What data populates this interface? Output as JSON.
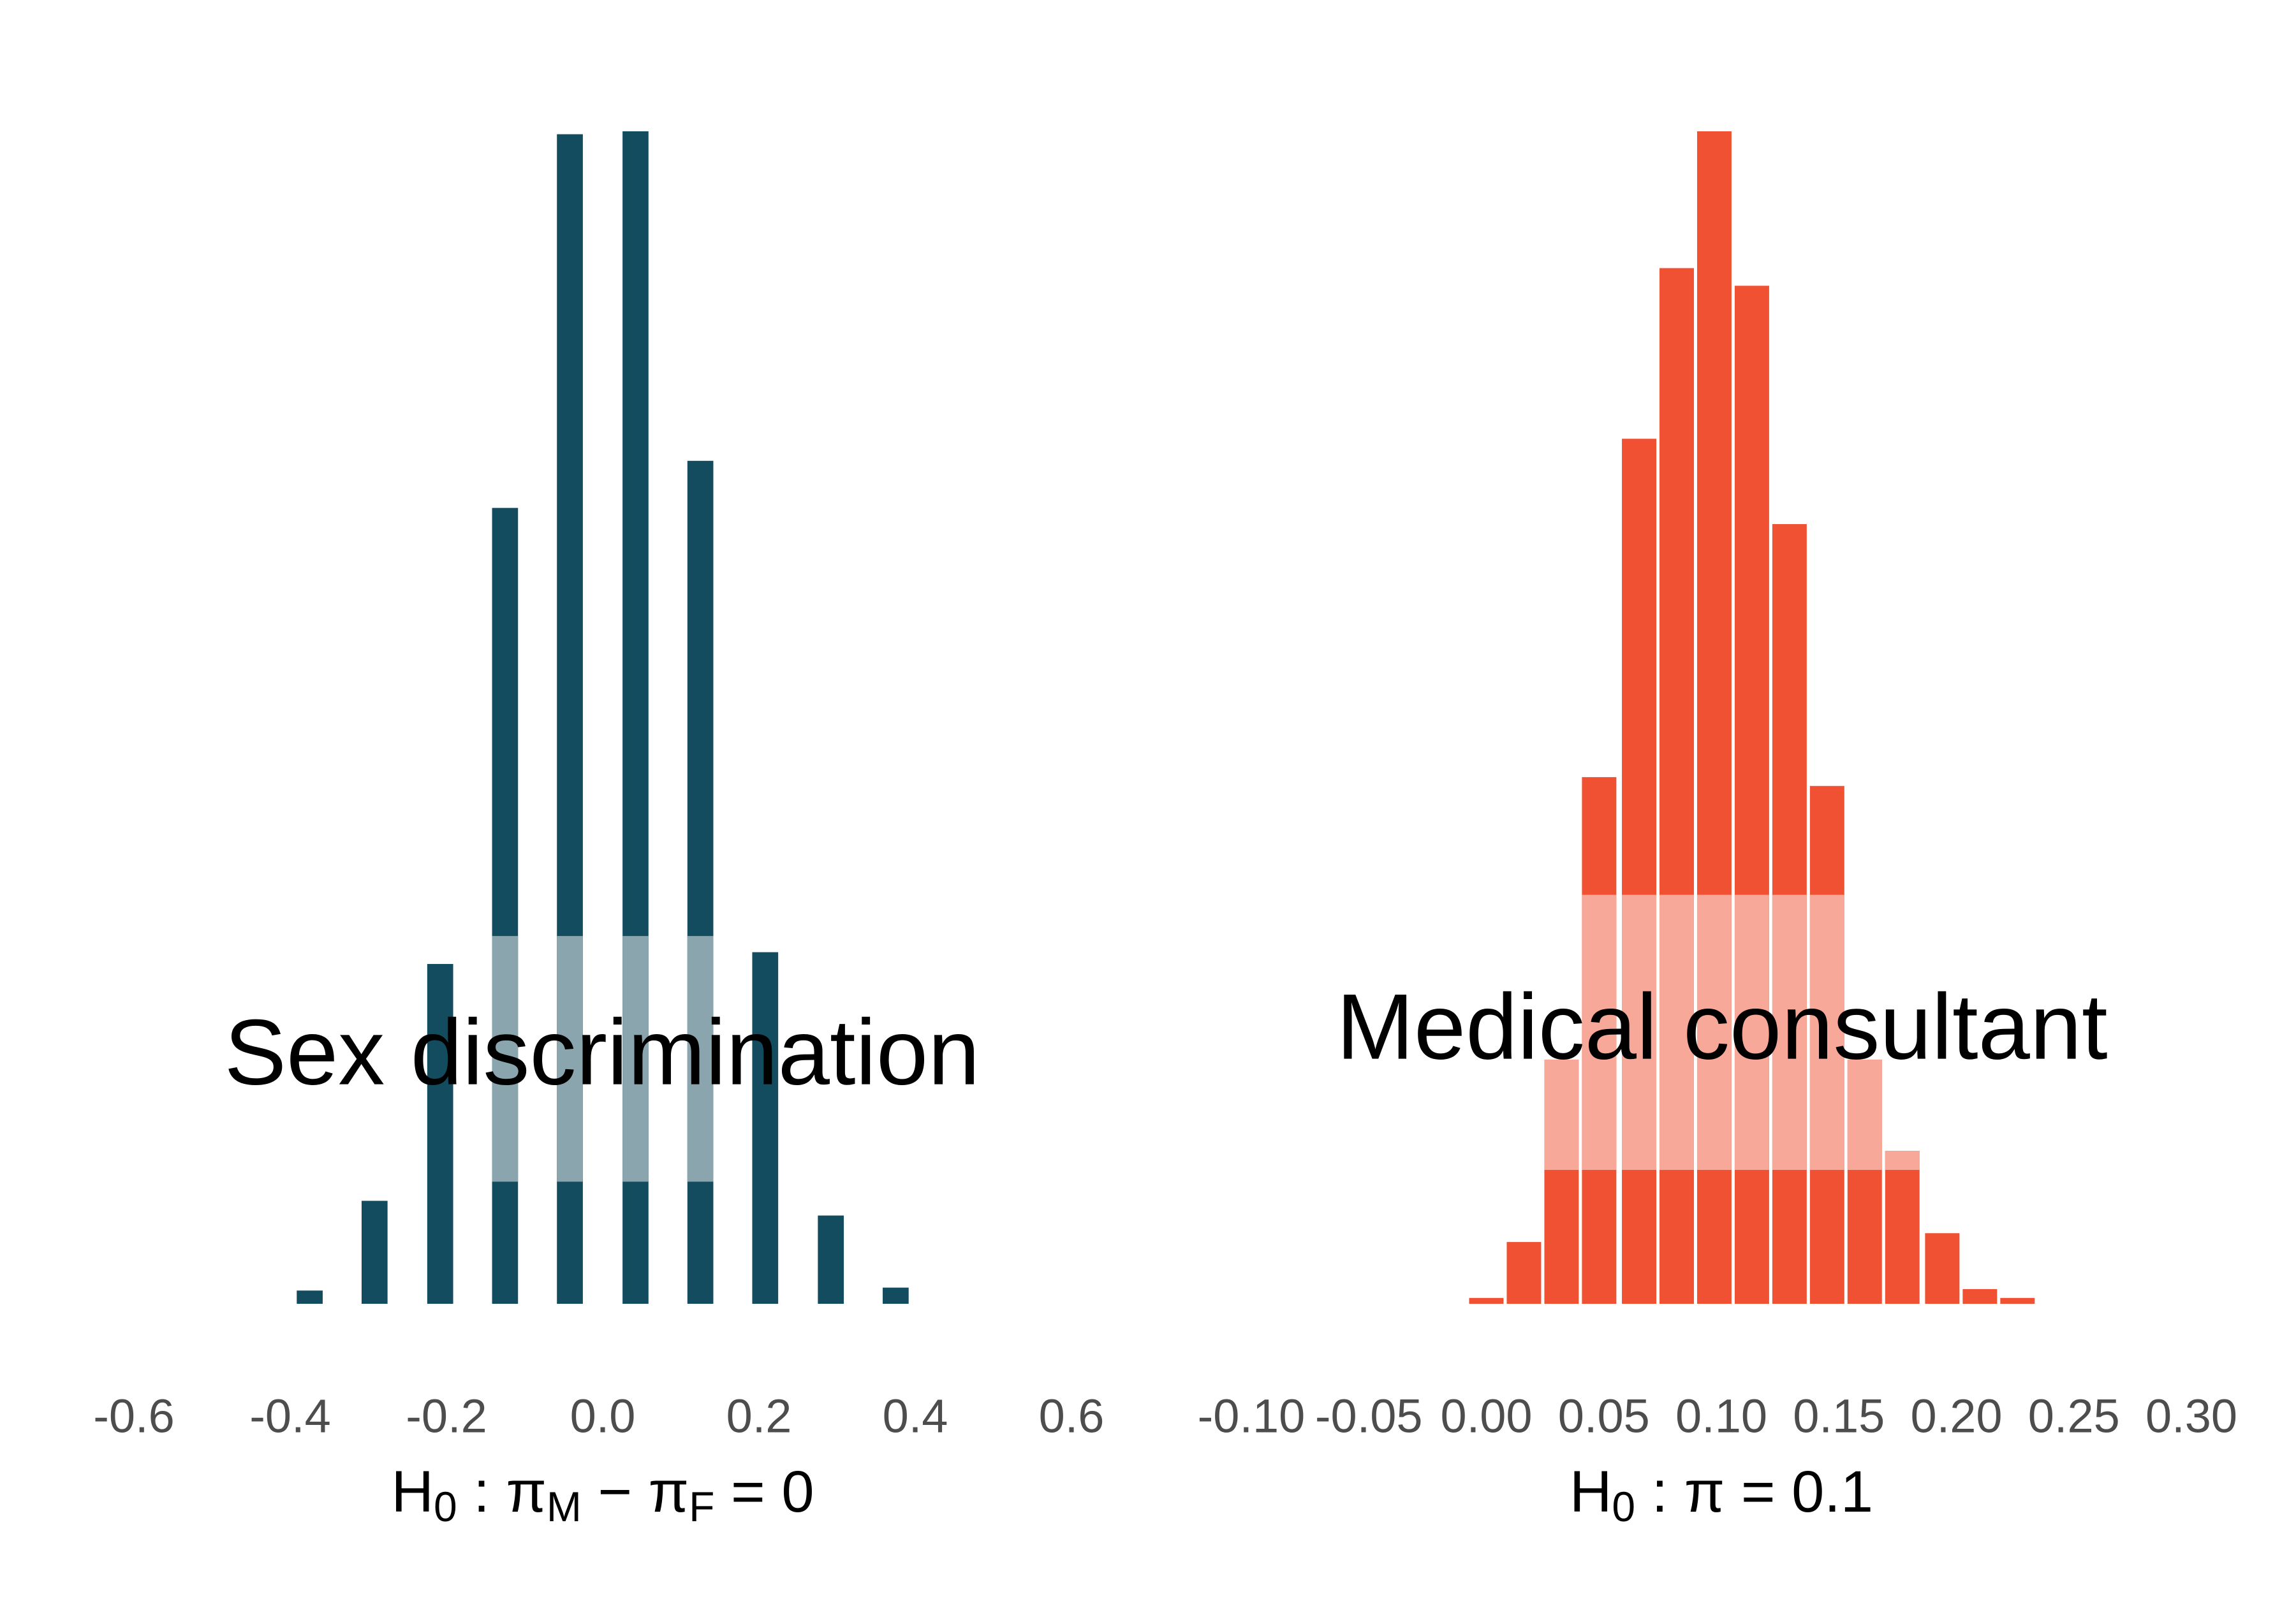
{
  "chart_data": [
    {
      "type": "bar",
      "title": "Sex discrimination",
      "xlabel": [
        {
          "text": "H"
        },
        {
          "text": "0",
          "sub": true
        },
        {
          "text": " :  π"
        },
        {
          "text": "M",
          "sub": true
        },
        {
          "text": " − π"
        },
        {
          "text": "F",
          "sub": true
        },
        {
          "text": " = 0"
        }
      ],
      "x": [
        -0.375,
        -0.292,
        -0.208,
        -0.125,
        -0.042,
        0.042,
        0.125,
        0.208,
        0.292,
        0.375
      ],
      "values": [
        9,
        70,
        231,
        541,
        795,
        797,
        573,
        239,
        60,
        11
      ],
      "highlight_low": [
        null,
        null,
        null,
        83,
        83,
        83,
        83,
        null,
        null,
        null
      ],
      "highlight_high": [
        null,
        null,
        null,
        250,
        250,
        250,
        250,
        null,
        null,
        null
      ],
      "color": "#134b5f",
      "highlight_color": "#8aa5ae",
      "xlim": [
        -0.6,
        0.6
      ],
      "xticks": [
        -0.6,
        -0.4,
        -0.2,
        {
          "value": 0,
          "label": "0.0"
        },
        0.2,
        0.4,
        0.6
      ],
      "ylim": [
        0,
        800
      ]
    },
    {
      "type": "bar",
      "title": "Medical consultant",
      "xlabel": [
        {
          "text": "H"
        },
        {
          "text": "0",
          "sub": true
        },
        {
          "text": " :  π = 0.1"
        }
      ],
      "x": [
        0,
        0.016,
        0.032,
        0.048,
        0.065,
        0.081,
        0.097,
        0.113,
        0.129,
        0.145,
        0.161,
        0.177,
        0.194,
        0.21,
        0.226
      ],
      "values": [
        4,
        42,
        166,
        358,
        588,
        704,
        797,
        692,
        530,
        352,
        166,
        104,
        48,
        10,
        4
      ],
      "highlight_low": [
        null,
        null,
        91,
        91,
        91,
        91,
        91,
        91,
        91,
        91,
        91,
        91,
        null,
        null,
        null
      ],
      "highlight_high": [
        null,
        null,
        166,
        278,
        278,
        278,
        278,
        278,
        278,
        278,
        166,
        104,
        null,
        null,
        null
      ],
      "color": "#f05133",
      "highlight_color": "#f7a898",
      "xlim": [
        -0.1,
        0.3
      ],
      "xticks": [
        {
          "value": -0.1,
          "label": "-0.10"
        },
        -0.05,
        {
          "value": 0,
          "label": "0.00"
        },
        0.05,
        {
          "value": 0.1,
          "label": "0.10"
        },
        0.15,
        {
          "value": 0.2,
          "label": "0.20"
        },
        0.25,
        {
          "value": 0.3,
          "label": "0.30"
        }
      ],
      "ylim": [
        0,
        800
      ]
    }
  ]
}
